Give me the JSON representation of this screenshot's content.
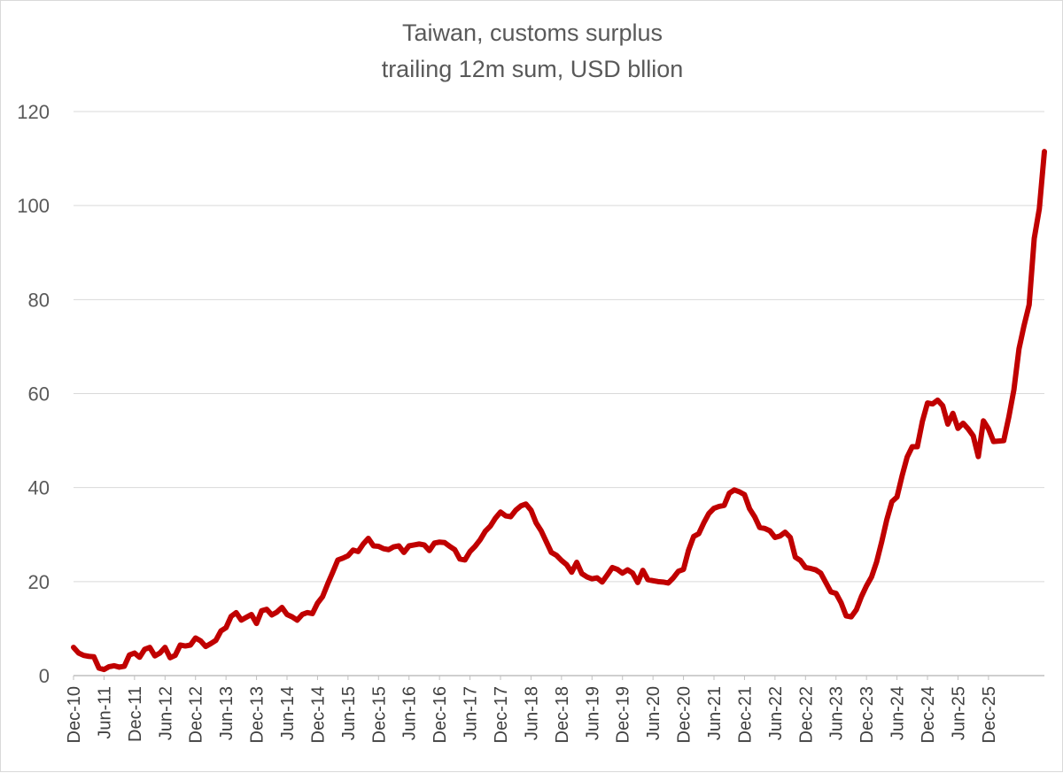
{
  "chart_data": {
    "type": "line",
    "title_lines": [
      "Taiwan, customs surplus",
      "trailing 12m sum, USD bllion"
    ],
    "xlabel": "",
    "ylabel": "",
    "ylim": [
      0,
      120
    ],
    "yticks": [
      0,
      20,
      40,
      60,
      80,
      100,
      120
    ],
    "grid": true,
    "legend": "none",
    "x_start": "Dec-10",
    "x_end": "Dec-25",
    "x_tick_labels": [
      "Dec-10",
      "Jun-11",
      "Dec-11",
      "Jun-12",
      "Dec-12",
      "Jun-13",
      "Dec-13",
      "Jun-14",
      "Dec-14",
      "Jun-15",
      "Dec-15",
      "Jun-16",
      "Dec-16",
      "Jun-17",
      "Dec-17",
      "Jun-18",
      "Dec-18",
      "Jun-19",
      "Dec-19",
      "Jun-20",
      "Dec-20",
      "Jun-21",
      "Dec-21",
      "Jun-22",
      "Dec-22",
      "Jun-23",
      "Dec-23",
      "Jun-24",
      "Dec-24",
      "Jun-25",
      "Dec-25"
    ],
    "line_color": "#C00000",
    "series": [
      {
        "values": [
          6.0,
          4.8,
          4.3,
          4.1,
          4.0,
          1.6,
          1.3,
          1.9,
          2.1,
          1.8,
          2.0,
          4.4,
          4.8,
          3.9,
          5.6,
          6.0,
          4.2,
          4.8,
          6.0,
          3.8,
          4.3,
          6.5,
          6.3,
          6.5,
          8.0,
          7.4,
          6.2,
          6.8,
          7.5,
          9.5,
          10.2,
          12.6,
          13.4,
          11.8,
          12.4,
          13.0,
          11.1,
          13.8,
          14.1,
          12.9,
          13.5,
          14.5,
          13.0,
          12.5,
          11.8,
          13.0,
          13.4,
          13.2,
          15.4,
          16.8,
          19.5,
          22.0,
          24.6,
          25.0,
          25.5,
          26.7,
          26.4,
          28.0,
          29.2,
          27.6,
          27.5,
          27.0,
          26.8,
          27.4,
          27.6,
          26.2,
          27.6,
          27.8,
          28.0,
          27.8,
          26.6,
          28.2,
          28.4,
          28.3,
          27.5,
          26.8,
          24.8,
          24.6,
          26.4,
          27.5,
          28.9,
          30.7,
          31.8,
          33.5,
          34.8,
          34.0,
          33.8,
          35.2,
          36.1,
          36.5,
          35.2,
          32.5,
          30.8,
          28.5,
          26.2,
          25.6,
          24.5,
          23.6,
          22.0,
          24.1,
          21.7,
          21.0,
          20.6,
          20.8,
          19.9,
          21.4,
          23.0,
          22.6,
          21.8,
          22.5,
          21.8,
          19.8,
          22.4,
          20.4,
          20.2,
          20.0,
          19.9,
          19.7,
          20.8,
          22.2,
          22.6,
          26.7,
          29.6,
          30.2,
          32.5,
          34.5,
          35.6,
          36.0,
          36.2,
          38.8,
          39.5,
          39.1,
          38.5,
          35.5,
          33.8,
          31.5,
          31.3,
          30.8,
          29.4,
          29.7,
          30.5,
          29.4,
          25.2,
          24.5,
          23.0,
          22.8,
          22.5,
          21.8,
          19.8,
          17.8,
          17.5,
          15.5,
          12.7,
          12.5,
          14.0,
          16.8,
          19.1,
          21.0,
          24.2,
          28.5,
          33.2,
          37.0,
          38.0,
          42.5,
          46.5,
          48.7,
          48.7,
          54.1,
          58.0,
          57.8,
          58.6,
          57.4,
          53.5,
          55.8,
          52.6,
          53.7,
          52.5,
          51.0,
          46.6,
          54.2,
          52.5,
          49.8,
          49.9,
          50.0,
          55.0,
          60.8,
          69.5,
          74.5,
          78.9,
          93.0,
          99.3,
          111.5
        ]
      }
    ]
  }
}
